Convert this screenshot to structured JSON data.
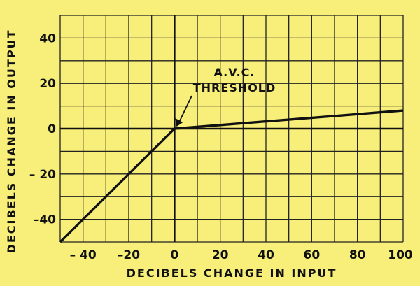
{
  "chart_data": {
    "type": "line",
    "xlabel": "DECIBELS CHANGE IN INPUT",
    "ylabel": "DECIBELS CHANGE IN OUTPUT",
    "xlim": [
      -50,
      100
    ],
    "ylim": [
      -50,
      50
    ],
    "grid": true,
    "grid_step": 10,
    "x_ticks": [
      -40,
      -20,
      0,
      20,
      40,
      60,
      80,
      100
    ],
    "x_tick_labels": [
      "– 40",
      "–20",
      "0",
      "20",
      "40",
      "60",
      "80",
      "100"
    ],
    "y_ticks": [
      40,
      20,
      0,
      -20,
      -40
    ],
    "y_tick_labels": [
      "40",
      "20",
      "0",
      "– 20",
      "–40"
    ],
    "series": [
      {
        "x": [
          -50,
          0,
          100
        ],
        "y": [
          -50,
          0,
          8
        ]
      }
    ],
    "annotations": [
      {
        "lines": [
          "A.V.C.",
          "THRESHOLD"
        ],
        "x": 0,
        "y": 0
      }
    ]
  }
}
